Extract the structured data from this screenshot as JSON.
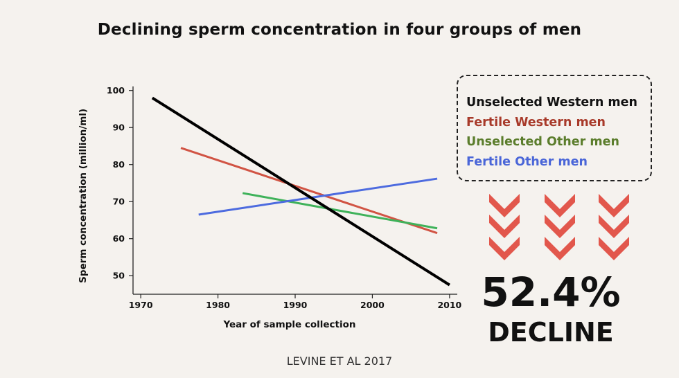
{
  "title": "Declining sperm concentration in four groups of men",
  "legend_colors": [
    "#111111",
    "#a83a2a",
    "#5b7d2c",
    "#4a66d8"
  ],
  "chevron_color": "#e2574c",
  "headline": {
    "percent": "52.4%",
    "label": "DECLINE"
  },
  "source": "LEVINE ET AL 2017",
  "chart_data": {
    "type": "line",
    "title": "Declining sperm concentration in four groups of men",
    "xlabel": "Year of sample collection",
    "ylabel": "Sperm concentration (million/ml)",
    "xlim": [
      1969,
      2011
    ],
    "ylim": [
      45,
      102
    ],
    "xticks": [
      1970,
      1980,
      1990,
      2000,
      2010
    ],
    "yticks": [
      50,
      60,
      70,
      80,
      90,
      100
    ],
    "legend_position": "top-right",
    "series": [
      {
        "name": "Unselected Western men",
        "color": "#000000",
        "x": [
          1971.5,
          2010
        ],
        "y": [
          98,
          47.5
        ]
      },
      {
        "name": "Fertile Western men",
        "color": "#d15444",
        "x": [
          1975.2,
          2008.4
        ],
        "y": [
          84.5,
          61.5
        ]
      },
      {
        "name": "Unselected Other men",
        "color": "#3fb25a",
        "x": [
          1983.2,
          2008.4
        ],
        "y": [
          72.3,
          62.8
        ]
      },
      {
        "name": "Fertile Other men",
        "color": "#4d6bdf",
        "x": [
          1977.5,
          2008.4
        ],
        "y": [
          66.5,
          76.2
        ]
      }
    ]
  }
}
